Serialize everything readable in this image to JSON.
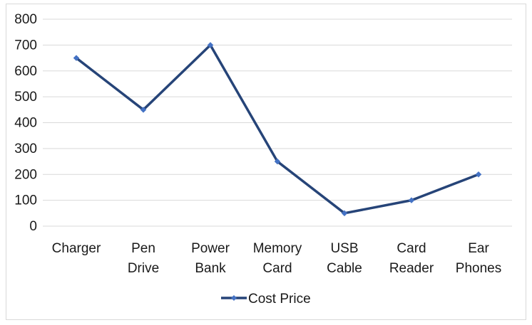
{
  "chart_data": {
    "type": "line",
    "title": "",
    "xlabel": "",
    "ylabel": "",
    "categories": [
      [
        "Charger"
      ],
      [
        "Pen",
        "Drive"
      ],
      [
        "Power",
        "Bank"
      ],
      [
        "Memory",
        "Card"
      ],
      [
        "USB",
        "Cable"
      ],
      [
        "Card",
        "Reader"
      ],
      [
        "Ear",
        "Phones"
      ]
    ],
    "series": [
      {
        "name": "Cost Price",
        "values": [
          650,
          450,
          700,
          250,
          50,
          100,
          200
        ],
        "color": "#264478",
        "marker_color": "#4472C4"
      }
    ],
    "ylim": [
      0,
      800
    ],
    "yticks": [
      0,
      100,
      200,
      300,
      400,
      500,
      600,
      700,
      800
    ],
    "grid": true,
    "grid_color": "#d9d9d9",
    "legend_position": "bottom"
  }
}
